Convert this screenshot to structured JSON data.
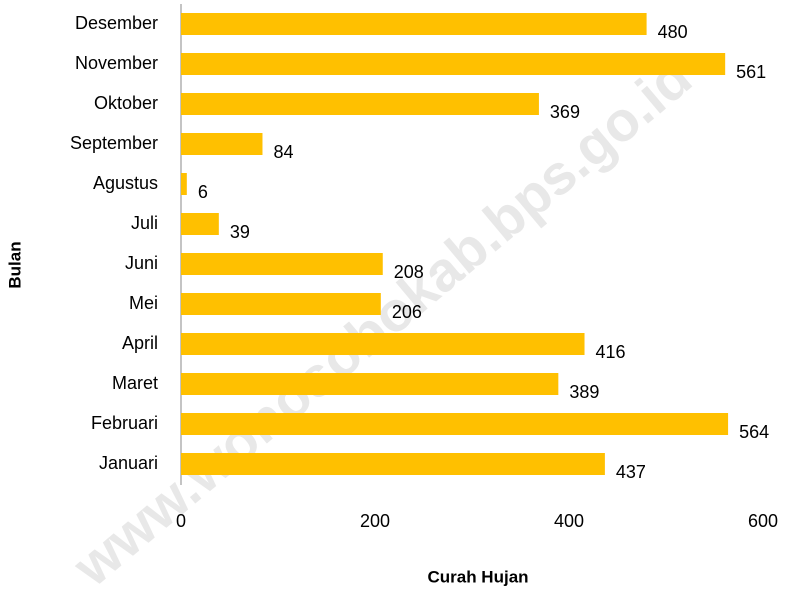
{
  "chart_data": {
    "type": "bar",
    "orientation": "horizontal",
    "x_label": "Curah Hujan",
    "y_label": "Bulan",
    "watermark": "www.wonosobokab.bps.go.id",
    "categories": [
      "Desember",
      "November",
      "Oktober",
      "September",
      "Agustus",
      "Juli",
      "Juni",
      "Mei",
      "April",
      "Maret",
      "Februari",
      "Januari"
    ],
    "values": [
      480,
      561,
      369,
      84,
      6,
      39,
      208,
      206,
      416,
      389,
      564,
      437
    ],
    "color": "#ffc000",
    "xlim": [
      0,
      600
    ],
    "xticks": [
      0,
      200,
      400,
      600
    ],
    "grid": false
  }
}
